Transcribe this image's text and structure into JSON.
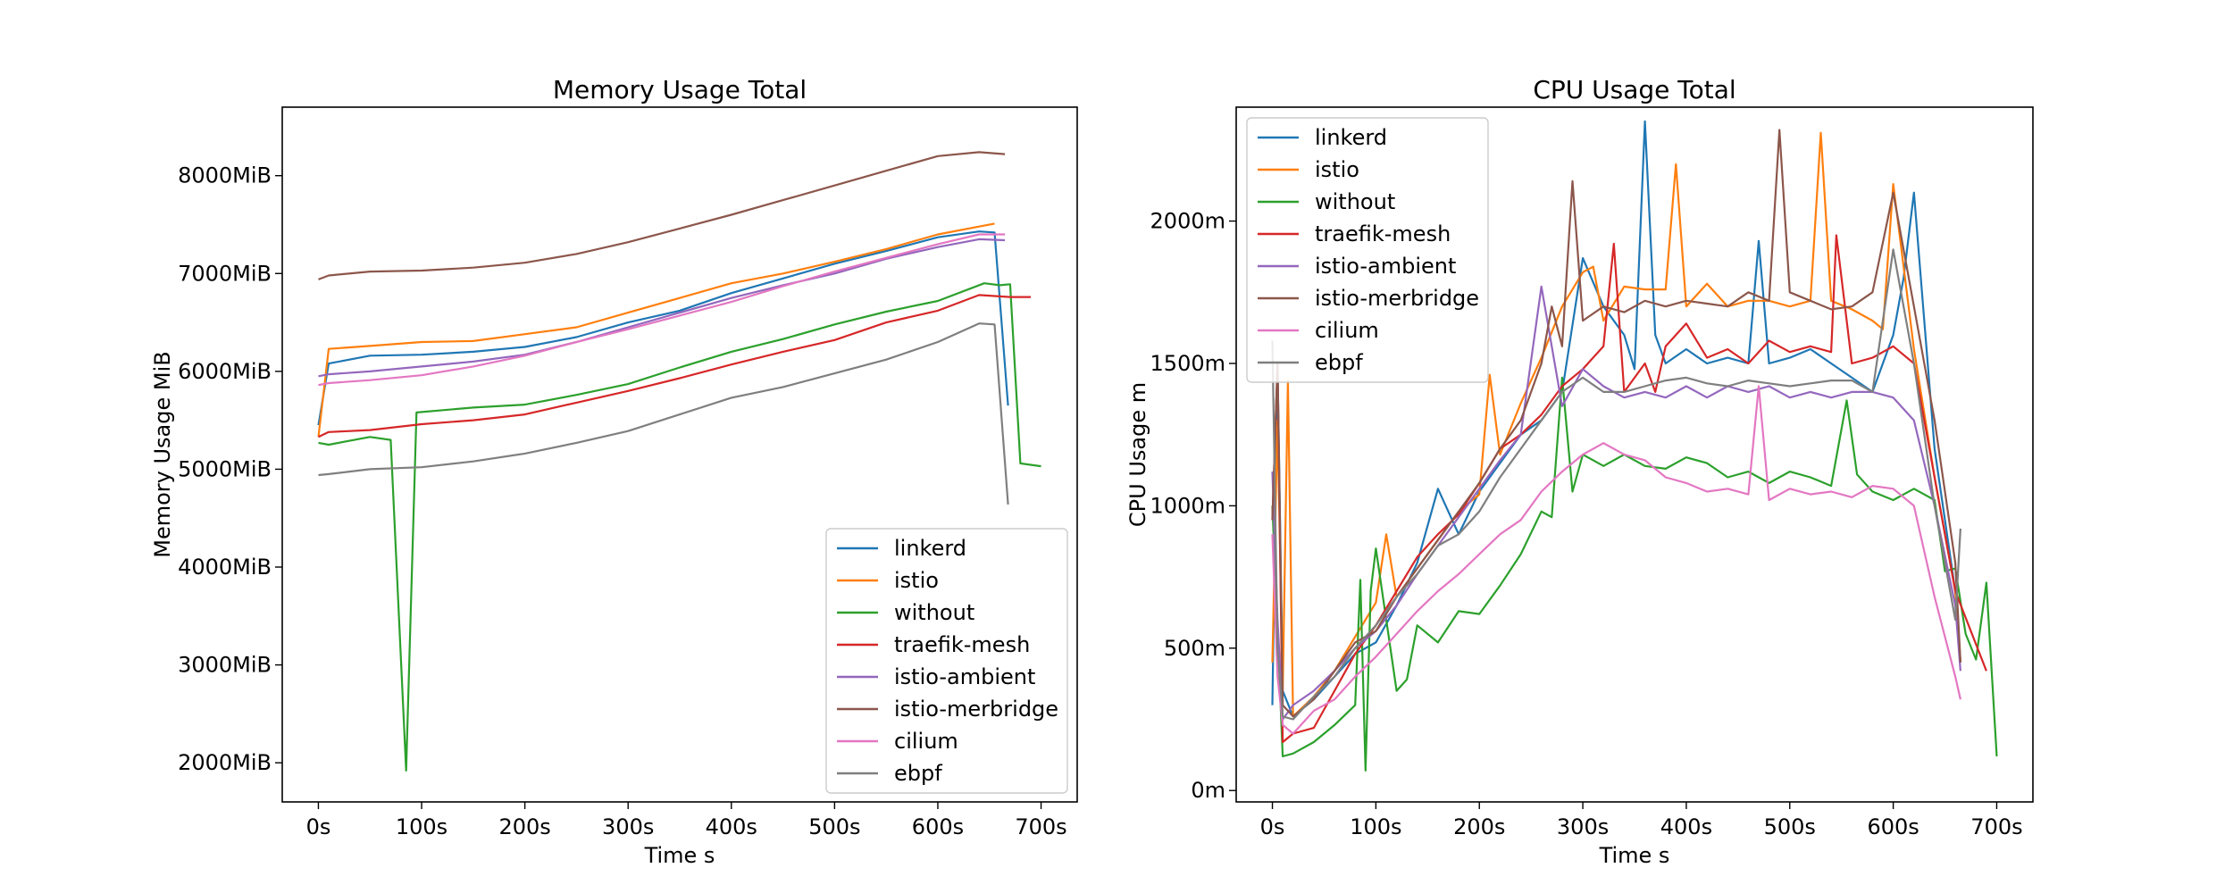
{
  "figure": {
    "background": "#ffffff"
  },
  "chart_data": [
    {
      "type": "line",
      "title": "Memory Usage Total",
      "xlabel": "Time s",
      "ylabel": "Memory Usage MiB",
      "xlim": [
        -35,
        735
      ],
      "ylim": [
        1600,
        8700
      ],
      "xticks": [
        0,
        100,
        200,
        300,
        400,
        500,
        600,
        700
      ],
      "xtick_labels": [
        "0s",
        "100s",
        "200s",
        "300s",
        "400s",
        "500s",
        "600s",
        "700s"
      ],
      "yticks": [
        2000,
        3000,
        4000,
        5000,
        6000,
        7000,
        8000
      ],
      "ytick_labels": [
        "2000MiB",
        "3000MiB",
        "4000MiB",
        "5000MiB",
        "6000MiB",
        "7000MiB",
        "8000MiB"
      ],
      "grid": false,
      "legend_position": "lower-right",
      "series": [
        {
          "name": "linkerd",
          "color": "#1f77b4",
          "x": [
            0,
            10,
            50,
            100,
            150,
            200,
            250,
            300,
            350,
            400,
            450,
            500,
            550,
            600,
            640,
            655,
            668
          ],
          "y": [
            5450,
            6080,
            6160,
            6170,
            6200,
            6250,
            6350,
            6500,
            6620,
            6800,
            6950,
            7100,
            7230,
            7370,
            7430,
            7420,
            5650
          ]
        },
        {
          "name": "istio",
          "color": "#ff7f0e",
          "x": [
            0,
            10,
            50,
            100,
            150,
            200,
            250,
            300,
            350,
            400,
            450,
            500,
            550,
            600,
            640,
            655
          ],
          "y": [
            5330,
            6230,
            6260,
            6300,
            6310,
            6380,
            6450,
            6600,
            6750,
            6900,
            7000,
            7120,
            7250,
            7400,
            7480,
            7510
          ]
        },
        {
          "name": "without",
          "color": "#2ca02c",
          "x": [
            0,
            10,
            50,
            70,
            85,
            95,
            150,
            200,
            250,
            300,
            350,
            400,
            450,
            500,
            550,
            600,
            645,
            660,
            670,
            680,
            700
          ],
          "y": [
            5270,
            5250,
            5330,
            5300,
            1920,
            5580,
            5630,
            5660,
            5760,
            5870,
            6040,
            6200,
            6330,
            6480,
            6610,
            6720,
            6900,
            6880,
            6890,
            5060,
            5030
          ]
        },
        {
          "name": "traefik-mesh",
          "color": "#d62728",
          "x": [
            0,
            10,
            50,
            100,
            150,
            200,
            250,
            300,
            350,
            400,
            450,
            500,
            550,
            600,
            640,
            670,
            690
          ],
          "y": [
            5330,
            5380,
            5400,
            5460,
            5500,
            5560,
            5680,
            5800,
            5930,
            6070,
            6200,
            6320,
            6500,
            6620,
            6780,
            6760,
            6760
          ]
        },
        {
          "name": "istio-ambient",
          "color": "#9467bd",
          "x": [
            0,
            10,
            50,
            100,
            150,
            200,
            250,
            300,
            350,
            400,
            450,
            500,
            550,
            600,
            640,
            665
          ],
          "y": [
            5950,
            5970,
            6000,
            6050,
            6100,
            6170,
            6300,
            6450,
            6600,
            6750,
            6880,
            7000,
            7150,
            7270,
            7350,
            7340
          ]
        },
        {
          "name": "istio-merbridge",
          "color": "#8c564b",
          "x": [
            0,
            10,
            50,
            100,
            150,
            200,
            250,
            300,
            350,
            400,
            450,
            500,
            550,
            600,
            640,
            665
          ],
          "y": [
            6940,
            6980,
            7020,
            7030,
            7060,
            7110,
            7200,
            7320,
            7460,
            7600,
            7750,
            7900,
            8050,
            8200,
            8240,
            8220
          ]
        },
        {
          "name": "cilium",
          "color": "#e377c2",
          "x": [
            0,
            10,
            50,
            100,
            150,
            200,
            250,
            300,
            350,
            400,
            450,
            500,
            550,
            600,
            640,
            665
          ],
          "y": [
            5860,
            5880,
            5910,
            5960,
            6050,
            6160,
            6300,
            6430,
            6570,
            6710,
            6870,
            7020,
            7160,
            7300,
            7400,
            7400
          ]
        },
        {
          "name": "ebpf",
          "color": "#7f7f7f",
          "x": [
            0,
            10,
            50,
            100,
            150,
            200,
            250,
            300,
            350,
            400,
            450,
            500,
            550,
            600,
            640,
            655,
            668
          ],
          "y": [
            4940,
            4950,
            5000,
            5020,
            5080,
            5160,
            5270,
            5390,
            5560,
            5730,
            5840,
            5980,
            6120,
            6300,
            6490,
            6480,
            4640
          ]
        }
      ]
    },
    {
      "type": "line",
      "title": "CPU Usage Total",
      "xlabel": "Time s",
      "ylabel": "CPU Usage m",
      "xlim": [
        -35,
        735
      ],
      "ylim": [
        -40,
        2400
      ],
      "xticks": [
        0,
        100,
        200,
        300,
        400,
        500,
        600,
        700
      ],
      "xtick_labels": [
        "0s",
        "100s",
        "200s",
        "300s",
        "400s",
        "500s",
        "600s",
        "700s"
      ],
      "yticks": [
        0,
        500,
        1000,
        1500,
        2000
      ],
      "ytick_labels": [
        "0m",
        "500m",
        "1000m",
        "1500m",
        "2000m"
      ],
      "grid": false,
      "legend_position": "upper-left",
      "series": [
        {
          "name": "linkerd",
          "color": "#1f77b4",
          "x": [
            0,
            5,
            10,
            20,
            40,
            60,
            80,
            100,
            120,
            140,
            160,
            180,
            200,
            220,
            240,
            260,
            280,
            300,
            320,
            340,
            350,
            360,
            370,
            380,
            400,
            420,
            440,
            460,
            470,
            480,
            500,
            520,
            540,
            560,
            580,
            600,
            610,
            620,
            640,
            660,
            665
          ],
          "y": [
            300,
            1500,
            350,
            260,
            320,
            400,
            480,
            520,
            650,
            800,
            1060,
            900,
            1050,
            1150,
            1250,
            1300,
            1400,
            1870,
            1700,
            1600,
            1480,
            2350,
            1600,
            1500,
            1550,
            1500,
            1520,
            1500,
            1930,
            1500,
            1520,
            1550,
            1500,
            1450,
            1400,
            1600,
            1800,
            2100,
            1200,
            700,
            450
          ]
        },
        {
          "name": "istio",
          "color": "#ff7f0e",
          "x": [
            0,
            5,
            10,
            15,
            20,
            40,
            60,
            80,
            100,
            110,
            120,
            140,
            160,
            180,
            200,
            210,
            220,
            240,
            260,
            280,
            300,
            310,
            320,
            340,
            360,
            380,
            390,
            400,
            420,
            440,
            460,
            480,
            500,
            520,
            530,
            540,
            560,
            580,
            590,
            600,
            620,
            640,
            660,
            665
          ],
          "y": [
            450,
            1300,
            350,
            1440,
            260,
            330,
            420,
            540,
            660,
            900,
            680,
            780,
            880,
            980,
            1040,
            1460,
            1180,
            1360,
            1520,
            1700,
            1820,
            1840,
            1650,
            1770,
            1760,
            1760,
            2200,
            1700,
            1780,
            1700,
            1720,
            1720,
            1700,
            1720,
            2310,
            1720,
            1690,
            1650,
            1620,
            2130,
            1550,
            1100,
            700,
            450
          ]
        },
        {
          "name": "without",
          "color": "#2ca02c",
          "x": [
            0,
            10,
            20,
            40,
            60,
            80,
            85,
            90,
            95,
            100,
            120,
            130,
            140,
            160,
            180,
            200,
            220,
            240,
            260,
            270,
            280,
            290,
            300,
            320,
            340,
            360,
            380,
            400,
            420,
            440,
            460,
            480,
            500,
            520,
            540,
            555,
            565,
            580,
            600,
            620,
            640,
            650,
            660,
            670,
            680,
            690,
            700
          ],
          "y": [
            1000,
            120,
            130,
            170,
            230,
            300,
            740,
            70,
            700,
            850,
            350,
            390,
            580,
            520,
            630,
            620,
            720,
            830,
            980,
            960,
            1450,
            1050,
            1180,
            1140,
            1180,
            1140,
            1130,
            1170,
            1150,
            1100,
            1120,
            1080,
            1120,
            1100,
            1070,
            1370,
            1110,
            1050,
            1020,
            1060,
            1020,
            770,
            780,
            550,
            460,
            730,
            120
          ]
        },
        {
          "name": "traefik-mesh",
          "color": "#d62728",
          "x": [
            0,
            5,
            10,
            20,
            40,
            60,
            80,
            100,
            120,
            140,
            160,
            180,
            200,
            220,
            240,
            260,
            280,
            300,
            320,
            330,
            340,
            360,
            370,
            380,
            400,
            420,
            440,
            460,
            480,
            500,
            520,
            540,
            545,
            560,
            580,
            600,
            620,
            640,
            660,
            690
          ],
          "y": [
            950,
            1500,
            170,
            200,
            220,
            350,
            480,
            580,
            700,
            820,
            900,
            970,
            1080,
            1200,
            1250,
            1320,
            1420,
            1480,
            1560,
            1920,
            1400,
            1500,
            1400,
            1560,
            1640,
            1520,
            1550,
            1500,
            1580,
            1540,
            1560,
            1540,
            1950,
            1500,
            1520,
            1560,
            1500,
            1100,
            700,
            420
          ]
        },
        {
          "name": "istio-ambient",
          "color": "#9467bd",
          "x": [
            0,
            5,
            10,
            20,
            40,
            60,
            80,
            100,
            120,
            140,
            160,
            180,
            200,
            220,
            240,
            260,
            280,
            300,
            320,
            340,
            360,
            380,
            400,
            420,
            440,
            460,
            480,
            500,
            520,
            540,
            560,
            580,
            600,
            620,
            640,
            660,
            665
          ],
          "y": [
            1120,
            600,
            250,
            300,
            350,
            420,
            500,
            560,
            650,
            760,
            860,
            960,
            1060,
            1160,
            1250,
            1770,
            1350,
            1480,
            1420,
            1380,
            1400,
            1380,
            1420,
            1380,
            1420,
            1400,
            1420,
            1380,
            1400,
            1380,
            1400,
            1400,
            1380,
            1300,
            1000,
            650,
            420
          ]
        },
        {
          "name": "istio-merbridge",
          "color": "#8c564b",
          "x": [
            0,
            5,
            10,
            20,
            40,
            60,
            80,
            100,
            120,
            140,
            160,
            180,
            200,
            220,
            240,
            260,
            270,
            280,
            290,
            300,
            320,
            340,
            360,
            380,
            400,
            420,
            440,
            460,
            480,
            490,
            500,
            520,
            540,
            560,
            580,
            600,
            620,
            640,
            660,
            665
          ],
          "y": [
            950,
            1500,
            300,
            260,
            320,
            420,
            520,
            560,
            680,
            780,
            880,
            980,
            1080,
            1200,
            1300,
            1500,
            1700,
            1560,
            2140,
            1650,
            1700,
            1680,
            1720,
            1700,
            1720,
            1710,
            1700,
            1750,
            1720,
            2320,
            1750,
            1720,
            1690,
            1700,
            1750,
            2100,
            1700,
            1300,
            800,
            450
          ]
        },
        {
          "name": "cilium",
          "color": "#e377c2",
          "x": [
            0,
            5,
            10,
            20,
            40,
            60,
            80,
            100,
            120,
            140,
            160,
            180,
            200,
            220,
            240,
            260,
            280,
            300,
            320,
            340,
            360,
            380,
            400,
            420,
            440,
            460,
            470,
            480,
            500,
            520,
            540,
            560,
            580,
            600,
            620,
            640,
            660,
            665
          ],
          "y": [
            900,
            400,
            230,
            200,
            280,
            320,
            400,
            470,
            550,
            630,
            700,
            760,
            830,
            900,
            950,
            1050,
            1120,
            1180,
            1220,
            1180,
            1160,
            1100,
            1080,
            1050,
            1060,
            1040,
            1420,
            1020,
            1060,
            1040,
            1050,
            1030,
            1070,
            1060,
            1000,
            680,
            400,
            320
          ]
        },
        {
          "name": "ebpf",
          "color": "#7f7f7f",
          "x": [
            0,
            5,
            10,
            20,
            40,
            60,
            80,
            100,
            120,
            140,
            160,
            180,
            200,
            220,
            240,
            260,
            280,
            300,
            320,
            340,
            360,
            380,
            400,
            420,
            440,
            460,
            480,
            500,
            520,
            540,
            560,
            580,
            600,
            620,
            640,
            660,
            665
          ],
          "y": [
            1580,
            500,
            260,
            250,
            330,
            400,
            500,
            580,
            680,
            760,
            860,
            900,
            980,
            1100,
            1200,
            1300,
            1400,
            1450,
            1400,
            1400,
            1420,
            1440,
            1450,
            1430,
            1420,
            1440,
            1430,
            1420,
            1430,
            1440,
            1440,
            1400,
            1900,
            1500,
            1000,
            600,
            920
          ]
        }
      ]
    }
  ]
}
